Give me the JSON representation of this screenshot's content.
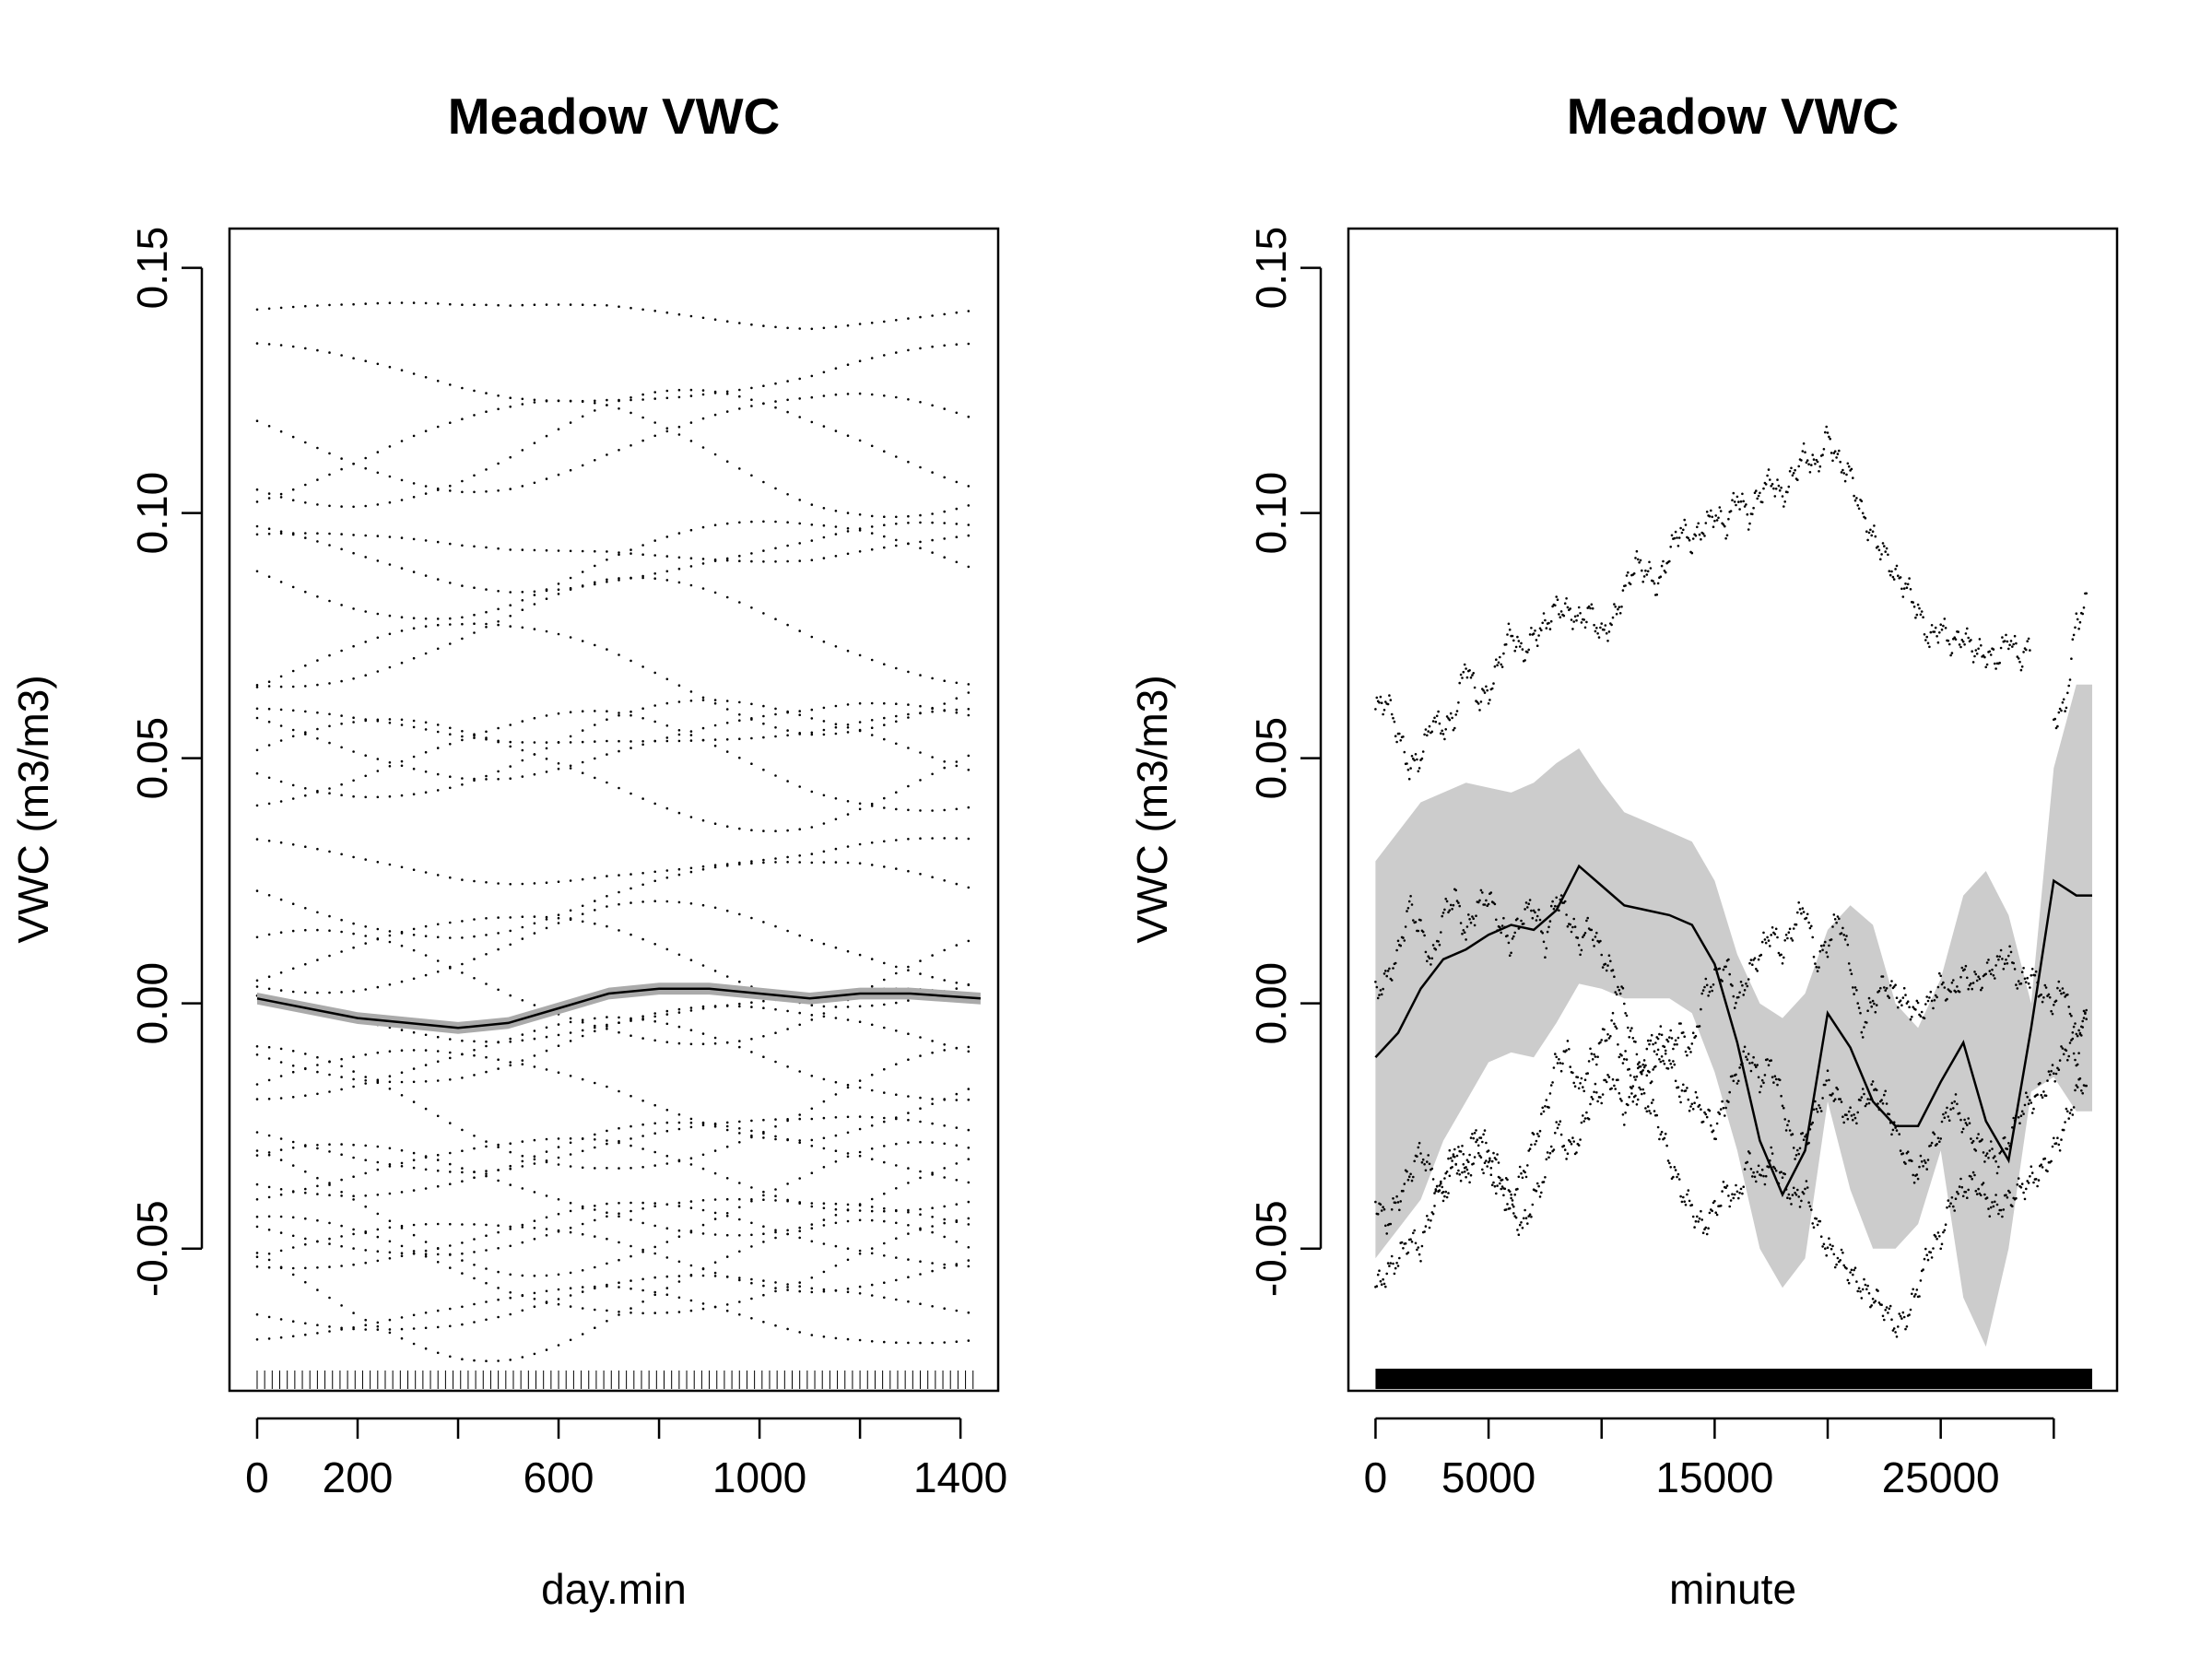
{
  "chart_data": [
    {
      "type": "scatter",
      "title": "Meadow VWC",
      "xlabel": "day.min",
      "ylabel": "VWC (m3/m3)",
      "xlim": [
        -55,
        1475
      ],
      "ylim": [
        -0.079,
        0.158
      ],
      "xticks": [
        0,
        200,
        600,
        1000,
        1400
      ],
      "xtick_marks": [
        0,
        200,
        400,
        600,
        800,
        1000,
        1200,
        1400
      ],
      "yticks": [
        "-0.05",
        "0.00",
        "0.05",
        "0.10",
        "0.15"
      ],
      "ytick_values": [
        -0.05,
        0.0,
        0.05,
        0.1,
        0.15
      ],
      "rug": true,
      "grid": false,
      "series": [
        {
          "kind": "smooth",
          "x": [
            0,
            100,
            200,
            300,
            400,
            500,
            600,
            700,
            800,
            900,
            1000,
            1100,
            1200,
            1300,
            1440
          ],
          "y": [
            0.001,
            -0.001,
            -0.003,
            -0.004,
            -0.005,
            -0.004,
            -0.001,
            0.002,
            0.003,
            0.003,
            0.002,
            0.001,
            0.002,
            0.002,
            0.001
          ],
          "ci_half_width": 0.0012
        }
      ],
      "residual_profiles_baseline": [
        0.141,
        0.128,
        0.115,
        0.113,
        0.111,
        0.093,
        0.091,
        0.089,
        0.075,
        0.067,
        0.056,
        0.054,
        0.052,
        0.049,
        0.047,
        0.029,
        0.022,
        0.011,
        0.009,
        0.003,
        -0.002,
        -0.008,
        -0.012,
        -0.018,
        -0.022,
        -0.028,
        -0.032,
        -0.035,
        -0.038,
        -0.042,
        -0.045,
        -0.048,
        -0.051,
        -0.054,
        -0.058,
        -0.061,
        -0.064
      ]
    },
    {
      "type": "line",
      "title": "Meadow VWC",
      "xlabel": "minute",
      "ylabel": "VWC (m3/m3)",
      "xlim": [
        -1200,
        32800
      ],
      "ylim": [
        -0.079,
        0.158
      ],
      "xticks": [
        0,
        5000,
        15000,
        25000
      ],
      "xtick_marks": [
        0,
        5000,
        10000,
        15000,
        20000,
        25000,
        30000
      ],
      "yticks": [
        "-0.05",
        "0.00",
        "0.05",
        "0.10",
        "0.15"
      ],
      "ytick_values": [
        -0.05,
        0.0,
        0.05,
        0.1,
        0.15
      ],
      "rug": true,
      "grid": false,
      "series": [
        {
          "kind": "smooth",
          "x": [
            0,
            1000,
            2000,
            3000,
            4000,
            5000,
            6000,
            7000,
            8000,
            9000,
            10000,
            11000,
            12000,
            13000,
            14000,
            15000,
            16000,
            17000,
            18000,
            19000,
            20000,
            21000,
            22000,
            23000,
            24000,
            25000,
            26000,
            27000,
            28000,
            29000,
            30000,
            31000,
            31700
          ],
          "y": [
            -0.011,
            -0.006,
            0.003,
            0.009,
            0.011,
            0.014,
            0.016,
            0.015,
            0.019,
            0.028,
            0.024,
            0.02,
            0.019,
            0.018,
            0.016,
            0.008,
            -0.008,
            -0.028,
            -0.039,
            -0.03,
            -0.002,
            -0.009,
            -0.02,
            -0.025,
            -0.025,
            -0.016,
            -0.008,
            -0.024,
            -0.032,
            -0.005,
            0.025,
            0.022,
            0.022
          ],
          "ci_upper": [
            0.029,
            0.035,
            0.041,
            0.043,
            0.045,
            0.044,
            0.043,
            0.045,
            0.049,
            0.052,
            0.045,
            0.039,
            0.037,
            0.035,
            0.033,
            0.025,
            0.01,
            0.0,
            -0.003,
            0.002,
            0.015,
            0.02,
            0.016,
            0.0,
            -0.005,
            0.005,
            0.022,
            0.027,
            0.018,
            0.0,
            0.048,
            0.065,
            0.065
          ],
          "ci_lower": [
            -0.052,
            -0.046,
            -0.04,
            -0.028,
            -0.02,
            -0.012,
            -0.01,
            -0.011,
            -0.004,
            0.004,
            0.003,
            0.001,
            0.001,
            0.001,
            -0.002,
            -0.014,
            -0.03,
            -0.05,
            -0.058,
            -0.052,
            -0.02,
            -0.038,
            -0.05,
            -0.05,
            -0.045,
            -0.03,
            -0.06,
            -0.07,
            -0.05,
            -0.018,
            -0.015,
            -0.022,
            -0.022
          ]
        },
        {
          "kind": "points",
          "name": "",
          "x": [
            0,
            500,
            1000,
            1500,
            2000,
            2500,
            3000,
            3500,
            4000,
            4500,
            5000,
            5500,
            6000,
            6500,
            7000,
            7500,
            8000,
            8500,
            9000,
            9500,
            10000,
            10500,
            11000,
            11500,
            12000,
            12500,
            13000,
            13500,
            14000,
            14500,
            15000,
            15500,
            16000,
            16500,
            17000,
            17500,
            18000,
            18500,
            19000,
            19500,
            20000,
            20500,
            21000,
            21500,
            22000,
            22500,
            23000,
            23500,
            24000,
            24500,
            25000,
            25500,
            26000,
            26500,
            27000,
            27500,
            28000,
            28500,
            29000,
            29500,
            30000,
            30500,
            31000,
            31500
          ],
          "y": [
            0.06,
            0.062,
            0.055,
            0.048,
            0.05,
            0.058,
            0.056,
            0.058,
            0.07,
            0.062,
            0.063,
            0.07,
            0.076,
            0.071,
            0.075,
            0.077,
            0.081,
            0.08,
            0.078,
            0.08,
            0.075,
            0.078,
            0.084,
            0.09,
            0.088,
            0.085,
            0.092,
            0.097,
            0.094,
            0.097,
            0.1,
            0.097,
            0.104,
            0.099,
            0.104,
            0.107,
            0.103,
            0.108,
            0.112,
            0.109,
            0.116,
            0.11,
            0.108,
            0.1,
            0.095,
            0.092,
            0.087,
            0.085,
            0.08,
            0.074,
            0.077,
            0.073,
            0.075,
            0.072,
            0.071,
            0.07,
            0.075,
            0.07,
            0.073,
            null,
            0.058,
            0.06,
            0.078,
            0.082
          ]
        },
        {
          "kind": "points",
          "name": "",
          "x": [
            0,
            500,
            1000,
            1500,
            2000,
            2500,
            3000,
            3500,
            4000,
            4500,
            5000,
            5500,
            6000,
            6500,
            7000,
            7500,
            8000,
            8500,
            9000,
            9500,
            10000,
            10500,
            11000,
            11500,
            12000,
            12500,
            13000,
            13500,
            14000,
            14500,
            15000,
            15500,
            16000,
            16500,
            17000,
            17500,
            18000,
            18500,
            19000,
            19500,
            20000,
            20500,
            21000,
            21500,
            22000,
            22500,
            23000,
            23500,
            24000,
            24500,
            25000,
            25500,
            26000,
            26500,
            27000,
            27500,
            28000,
            28500,
            29000,
            29500,
            30000,
            30500,
            31000,
            31500
          ],
          "y": [
            0.002,
            0.005,
            0.01,
            0.02,
            0.015,
            0.008,
            0.018,
            0.022,
            0.014,
            0.02,
            0.022,
            0.016,
            0.012,
            0.018,
            0.02,
            0.012,
            0.022,
            0.018,
            0.012,
            0.016,
            0.01,
            0.006,
            0.0,
            -0.01,
            -0.015,
            -0.012,
            -0.008,
            -0.006,
            -0.01,
            0.002,
            0.005,
            0.008,
            0.0,
            0.006,
            0.01,
            0.015,
            0.01,
            0.016,
            0.02,
            0.008,
            0.012,
            0.018,
            0.008,
            -0.005,
            0.0,
            0.004,
            0.002,
            0.0,
            -0.002,
            0.0,
            0.004,
            0.002,
            0.006,
            0.004,
            0.006,
            0.008,
            0.01,
            0.004,
            0.006,
            0.002,
            0.0,
            0.004,
            -0.012,
            0.0
          ]
        },
        {
          "kind": "points",
          "name": "",
          "x": [
            0,
            500,
            1000,
            1500,
            2000,
            2500,
            3000,
            3500,
            4000,
            4500,
            5000,
            5500,
            6000,
            6500,
            7000,
            7500,
            8000,
            8500,
            9000,
            9500,
            10000,
            10500,
            11000,
            11500,
            12000,
            12500,
            13000,
            13500,
            14000,
            14500,
            15000,
            15500,
            16000,
            16500,
            17000,
            17500,
            18000,
            18500,
            19000,
            19500,
            20000,
            20500,
            21000,
            21500,
            22000,
            22500,
            23000,
            23500,
            24000,
            24500,
            25000,
            25500,
            26000,
            26500,
            27000,
            27500,
            28000,
            28500,
            29000,
            29500,
            30000,
            30500,
            31000,
            31500
          ],
          "y": [
            -0.04,
            -0.045,
            -0.04,
            -0.035,
            -0.03,
            -0.035,
            -0.04,
            -0.032,
            -0.036,
            -0.03,
            -0.034,
            -0.038,
            -0.042,
            -0.046,
            -0.04,
            -0.035,
            -0.025,
            -0.03,
            -0.028,
            -0.02,
            -0.018,
            -0.015,
            -0.022,
            -0.018,
            -0.02,
            -0.024,
            -0.032,
            -0.038,
            -0.042,
            -0.046,
            -0.042,
            -0.038,
            -0.04,
            -0.032,
            -0.036,
            -0.032,
            -0.036,
            -0.04,
            -0.038,
            -0.045,
            -0.05,
            -0.052,
            -0.055,
            -0.058,
            -0.06,
            -0.062,
            -0.066,
            -0.064,
            -0.058,
            -0.05,
            -0.048,
            -0.04,
            -0.038,
            -0.036,
            -0.04,
            -0.042,
            -0.04,
            -0.038,
            -0.036,
            -0.034,
            -0.03,
            -0.025,
            -0.018,
            -0.015
          ]
        },
        {
          "kind": "points",
          "name": "",
          "x": [
            0,
            500,
            1000,
            1500,
            2000,
            2500,
            3000,
            3500,
            4000,
            4500,
            5000,
            5500,
            6000,
            6500,
            7000,
            7500,
            8000,
            8500,
            9000,
            9500,
            10000,
            10500,
            11000,
            11500,
            12000,
            12500,
            13000,
            13500,
            14000,
            14500,
            15000,
            15500,
            16000,
            16500,
            17000,
            17500,
            18000,
            18500,
            19000,
            19500,
            20000,
            20500,
            21000,
            21500,
            22000,
            22500,
            23000,
            23500,
            24000,
            24500,
            25000,
            25500,
            26000,
            26500,
            27000,
            27500,
            28000,
            28500,
            29000,
            29500,
            30000,
            30500,
            31000,
            31500
          ],
          "y": [
            -0.058,
            -0.055,
            -0.052,
            -0.048,
            -0.05,
            -0.042,
            -0.036,
            -0.03,
            -0.032,
            -0.026,
            -0.03,
            -0.034,
            -0.04,
            -0.035,
            -0.028,
            -0.022,
            -0.012,
            -0.01,
            -0.018,
            -0.012,
            -0.008,
            -0.004,
            -0.012,
            -0.016,
            -0.01,
            -0.006,
            -0.012,
            -0.018,
            -0.02,
            -0.022,
            -0.026,
            -0.02,
            -0.014,
            -0.01,
            -0.016,
            -0.012,
            -0.02,
            -0.03,
            -0.028,
            -0.022,
            -0.016,
            -0.02,
            -0.024,
            -0.02,
            -0.018,
            -0.02,
            -0.026,
            -0.032,
            -0.035,
            -0.03,
            -0.026,
            -0.02,
            -0.024,
            -0.028,
            -0.03,
            -0.032,
            -0.028,
            -0.022,
            -0.02,
            -0.018,
            -0.014,
            -0.01,
            -0.006,
            -0.002
          ]
        }
      ]
    }
  ]
}
